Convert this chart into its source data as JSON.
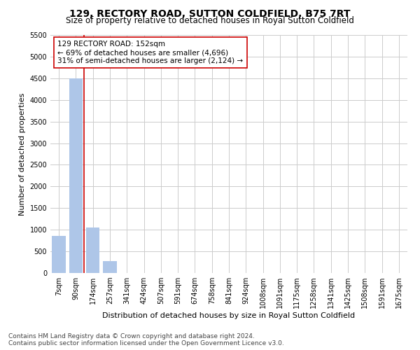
{
  "title": "129, RECTORY ROAD, SUTTON COLDFIELD, B75 7RT",
  "subtitle": "Size of property relative to detached houses in Royal Sutton Coldfield",
  "xlabel": "Distribution of detached houses by size in Royal Sutton Coldfield",
  "ylabel": "Number of detached properties",
  "annotation_title": "129 RECTORY ROAD: 152sqm",
  "annotation_line1": "← 69% of detached houses are smaller (4,696)",
  "annotation_line2": "31% of semi-detached houses are larger (2,124) →",
  "footer1": "Contains HM Land Registry data © Crown copyright and database right 2024.",
  "footer2": "Contains public sector information licensed under the Open Government Licence v3.0.",
  "categories": [
    "7sqm",
    "90sqm",
    "174sqm",
    "257sqm",
    "341sqm",
    "424sqm",
    "507sqm",
    "591sqm",
    "674sqm",
    "758sqm",
    "841sqm",
    "924sqm",
    "1008sqm",
    "1091sqm",
    "1175sqm",
    "1258sqm",
    "1341sqm",
    "1425sqm",
    "1508sqm",
    "1591sqm",
    "1675sqm"
  ],
  "values": [
    850,
    4500,
    1050,
    280,
    0,
    0,
    0,
    0,
    0,
    0,
    0,
    0,
    0,
    0,
    0,
    0,
    0,
    0,
    0,
    0,
    0
  ],
  "bar_color": "#aec6e8",
  "property_line_x": 1.48,
  "property_line_color": "#cc0000",
  "ylim": [
    0,
    5500
  ],
  "yticks": [
    0,
    500,
    1000,
    1500,
    2000,
    2500,
    3000,
    3500,
    4000,
    4500,
    5000,
    5500
  ],
  "background_color": "#ffffff",
  "grid_color": "#cccccc",
  "annotation_box_color": "#ffffff",
  "annotation_box_edge_color": "#cc0000",
  "title_fontsize": 10,
  "subtitle_fontsize": 8.5,
  "ylabel_fontsize": 8,
  "xlabel_fontsize": 8,
  "tick_fontsize": 7,
  "annotation_fontsize": 7.5,
  "footer_fontsize": 6.5
}
